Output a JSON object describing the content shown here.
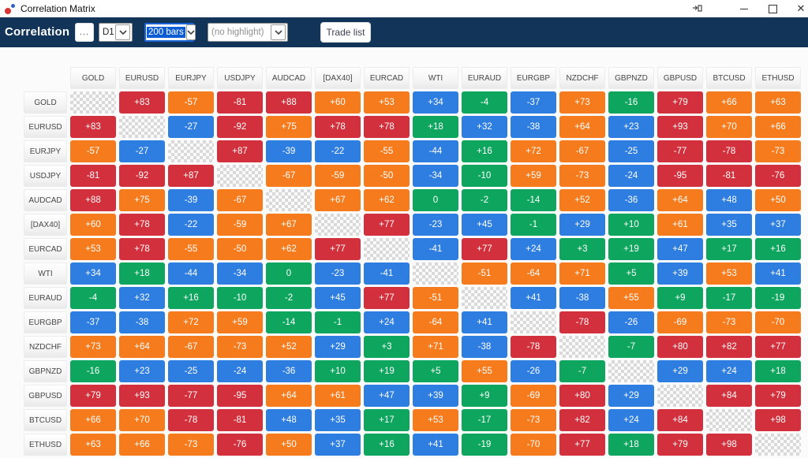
{
  "window": {
    "title": "Correlation Matrix",
    "icons": {
      "app_icon": "red-blue-scatter-dots",
      "detach_icon": "open-popup-arrow",
      "minimize_icon": "minimize-bar",
      "maximize_icon": "maximize-square",
      "close_icon": "✕"
    }
  },
  "toolbar": {
    "title": "Correlation",
    "more_button": "...",
    "timeframe_select": {
      "value": "D1"
    },
    "bars_select": {
      "value": "200 bars",
      "selected": true
    },
    "highlight_select": {
      "value": "(no highlight)"
    },
    "trade_list_button": "Trade list"
  },
  "matrix": {
    "symbols": [
      "GOLD",
      "EURUSD",
      "EURJPY",
      "USDJPY",
      "AUDCAD",
      "[DAX40]",
      "EURCAD",
      "WTI",
      "EURAUD",
      "EURGBP",
      "NZDCHF",
      "GBPNZD",
      "GBPUSD",
      "BTCUSD",
      "ETHUSD"
    ],
    "values": [
      [
        null,
        83,
        -57,
        -81,
        88,
        60,
        53,
        34,
        -4,
        -37,
        73,
        -16,
        79,
        66,
        63
      ],
      [
        83,
        null,
        -27,
        -92,
        75,
        78,
        78,
        18,
        32,
        -38,
        64,
        23,
        93,
        70,
        66
      ],
      [
        -57,
        -27,
        null,
        87,
        -39,
        -22,
        -55,
        -44,
        16,
        72,
        -67,
        -25,
        -77,
        -78,
        -73
      ],
      [
        -81,
        -92,
        87,
        null,
        -67,
        -59,
        -50,
        -34,
        -10,
        59,
        -73,
        -24,
        -95,
        -81,
        -76
      ],
      [
        88,
        75,
        -39,
        -67,
        null,
        67,
        62,
        0,
        -2,
        -14,
        52,
        -36,
        64,
        48,
        50
      ],
      [
        60,
        78,
        -22,
        -59,
        67,
        null,
        77,
        -23,
        45,
        -1,
        29,
        10,
        61,
        35,
        37
      ],
      [
        53,
        78,
        -55,
        -50,
        62,
        77,
        null,
        -41,
        77,
        24,
        3,
        19,
        47,
        17,
        16
      ],
      [
        34,
        18,
        -44,
        -34,
        0,
        -23,
        -41,
        null,
        -51,
        -64,
        71,
        5,
        39,
        53,
        41
      ],
      [
        -4,
        32,
        16,
        -10,
        -2,
        45,
        77,
        -51,
        null,
        41,
        -38,
        55,
        9,
        -17,
        -19
      ],
      [
        -37,
        -38,
        72,
        59,
        -14,
        -1,
        24,
        -64,
        41,
        null,
        -78,
        -26,
        -69,
        -73,
        -70
      ],
      [
        73,
        64,
        -67,
        -73,
        52,
        29,
        3,
        71,
        -38,
        -78,
        null,
        -7,
        80,
        82,
        77
      ],
      [
        -16,
        23,
        -25,
        -24,
        -36,
        10,
        19,
        5,
        55,
        -26,
        -7,
        null,
        29,
        24,
        18
      ],
      [
        79,
        93,
        -77,
        -95,
        64,
        61,
        47,
        39,
        9,
        -69,
        80,
        29,
        null,
        84,
        79
      ],
      [
        66,
        70,
        -78,
        -81,
        48,
        35,
        17,
        53,
        -17,
        -73,
        82,
        24,
        84,
        null,
        98
      ],
      [
        63,
        66,
        -73,
        -76,
        50,
        37,
        16,
        41,
        -19,
        -70,
        77,
        18,
        79,
        98,
        null
      ]
    ]
  },
  "colors": {
    "strong": "#d2303c",
    "moderate": "#f57b1d",
    "weak": "#2e7de0",
    "minimal": "#0ea65e",
    "toolbar_bg": "#123458",
    "selection_blue": "#0b5cd5"
  },
  "color_thresholds": {
    "strong_min": 76,
    "moderate_min": 50,
    "weak_min": 20
  }
}
